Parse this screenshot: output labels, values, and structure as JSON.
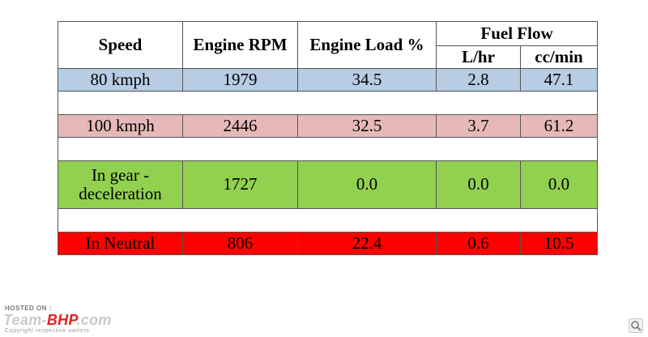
{
  "table": {
    "headers": {
      "speed": "Speed",
      "engine_rpm": "Engine RPM",
      "engine_load": "Engine Load %",
      "fuel_flow": "Fuel Flow",
      "lhr": "L/hr",
      "ccmin": "cc/min"
    },
    "rows": [
      {
        "speed": "80 kmph",
        "rpm": "1979",
        "load": "34.5",
        "lhr": "2.8",
        "ccmin": "47.1",
        "color": "#b8cce4"
      },
      {
        "speed": "100 kmph",
        "rpm": "2446",
        "load": "32.5",
        "lhr": "3.7",
        "ccmin": "61.2",
        "color": "#e6b9b8"
      },
      {
        "speed": "In gear - deceleration",
        "rpm": "1727",
        "load": "0.0",
        "lhr": "0.0",
        "ccmin": "0.0",
        "color": "#92d050"
      },
      {
        "speed": "In Neutral",
        "rpm": "806",
        "load": "22.4",
        "lhr": "0.6",
        "ccmin": "10.5",
        "color": "#ff0000"
      }
    ]
  },
  "watermark": {
    "hosted_on": "HOSTED ON :",
    "brand_prefix": "Team-",
    "brand_bhp": "BHP",
    "brand_suffix": ".com",
    "copyright": "Copyright respective owners"
  },
  "controls": {
    "zoom_icon": "magnifier-icon"
  }
}
